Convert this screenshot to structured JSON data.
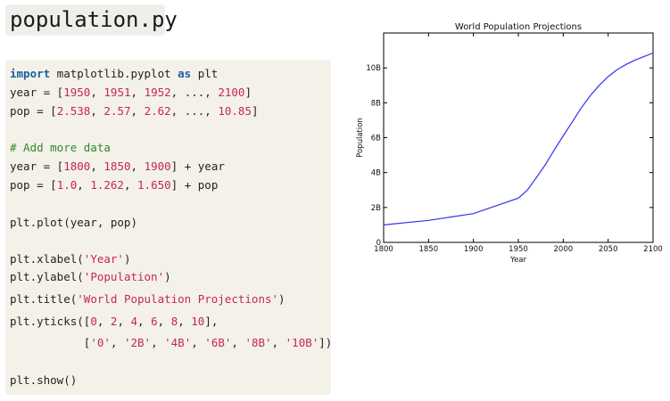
{
  "file": {
    "name": "population.py"
  },
  "code_lines": [
    [
      {
        "t": "import",
        "c": "kw"
      },
      {
        "t": " matplotlib.pyplot "
      },
      {
        "t": "as",
        "c": "kw"
      },
      {
        "t": " plt"
      }
    ],
    [
      {
        "t": "year = ["
      },
      {
        "t": "1950",
        "c": "num"
      },
      {
        "t": ", "
      },
      {
        "t": "1951",
        "c": "num"
      },
      {
        "t": ", "
      },
      {
        "t": "1952",
        "c": "num"
      },
      {
        "t": ", ..., "
      },
      {
        "t": "2100",
        "c": "num"
      },
      {
        "t": "]"
      }
    ],
    [
      {
        "t": "pop = ["
      },
      {
        "t": "2.538",
        "c": "num"
      },
      {
        "t": ", "
      },
      {
        "t": "2.57",
        "c": "num"
      },
      {
        "t": ", "
      },
      {
        "t": "2.62",
        "c": "num"
      },
      {
        "t": ", ..., "
      },
      {
        "t": "10.85",
        "c": "num"
      },
      {
        "t": "]"
      }
    ],
    [
      {
        "t": "# Add more data",
        "c": "cm"
      }
    ],
    [
      {
        "t": "year = ["
      },
      {
        "t": "1800",
        "c": "num"
      },
      {
        "t": ", "
      },
      {
        "t": "1850",
        "c": "num"
      },
      {
        "t": ", "
      },
      {
        "t": "1900",
        "c": "num"
      },
      {
        "t": "] + year"
      }
    ],
    [
      {
        "t": "pop = ["
      },
      {
        "t": "1.0",
        "c": "num"
      },
      {
        "t": ", "
      },
      {
        "t": "1.262",
        "c": "num"
      },
      {
        "t": ", "
      },
      {
        "t": "1.650",
        "c": "num"
      },
      {
        "t": "] + pop"
      }
    ],
    [
      {
        "t": "plt.plot(year, pop)"
      }
    ],
    [
      {
        "t": "plt.xlabel("
      },
      {
        "t": "'Year'",
        "c": "str"
      },
      {
        "t": ")"
      }
    ],
    [
      {
        "t": "plt.ylabel("
      },
      {
        "t": "'Population'",
        "c": "str"
      },
      {
        "t": ")"
      }
    ],
    [
      {
        "t": "plt.title("
      },
      {
        "t": "'World Population Projections'",
        "c": "str"
      },
      {
        "t": ")"
      }
    ],
    [
      {
        "t": "plt.yticks(["
      },
      {
        "t": "0",
        "c": "num"
      },
      {
        "t": ", "
      },
      {
        "t": "2",
        "c": "num"
      },
      {
        "t": ", "
      },
      {
        "t": "4",
        "c": "num"
      },
      {
        "t": ", "
      },
      {
        "t": "6",
        "c": "num"
      },
      {
        "t": ", "
      },
      {
        "t": "8",
        "c": "num"
      },
      {
        "t": ", "
      },
      {
        "t": "10",
        "c": "num"
      },
      {
        "t": "],"
      }
    ],
    [
      {
        "t": "           ["
      },
      {
        "t": "'0'",
        "c": "str"
      },
      {
        "t": ", "
      },
      {
        "t": "'2B'",
        "c": "str"
      },
      {
        "t": ", "
      },
      {
        "t": "'4B'",
        "c": "str"
      },
      {
        "t": ", "
      },
      {
        "t": "'6B'",
        "c": "str"
      },
      {
        "t": ", "
      },
      {
        "t": "'8B'",
        "c": "str"
      },
      {
        "t": ", "
      },
      {
        "t": "'10B'",
        "c": "str"
      },
      {
        "t": "])"
      }
    ],
    [
      {
        "t": "plt.show()"
      }
    ]
  ],
  "chart_data": {
    "type": "line",
    "title": "World Population Projections",
    "xlabel": "Year",
    "ylabel": "Population",
    "xlim": [
      1800,
      2100
    ],
    "ylim": [
      0,
      12
    ],
    "xticks": [
      1800,
      1850,
      1900,
      1950,
      2000,
      2050,
      2100
    ],
    "yticks": [
      0,
      2,
      4,
      6,
      8,
      10
    ],
    "ytick_labels": [
      "0",
      "2B",
      "4B",
      "6B",
      "8B",
      "10B"
    ],
    "grid": false,
    "line_color": "#3333ee",
    "x": [
      1800,
      1850,
      1900,
      1950,
      1960,
      1970,
      1980,
      1990,
      2000,
      2010,
      2020,
      2030,
      2040,
      2050,
      2060,
      2070,
      2080,
      2090,
      2100
    ],
    "y": [
      1.0,
      1.262,
      1.65,
      2.538,
      3.0,
      3.7,
      4.45,
      5.3,
      6.1,
      6.9,
      7.7,
      8.4,
      9.0,
      9.5,
      9.9,
      10.2,
      10.45,
      10.65,
      10.85
    ]
  }
}
